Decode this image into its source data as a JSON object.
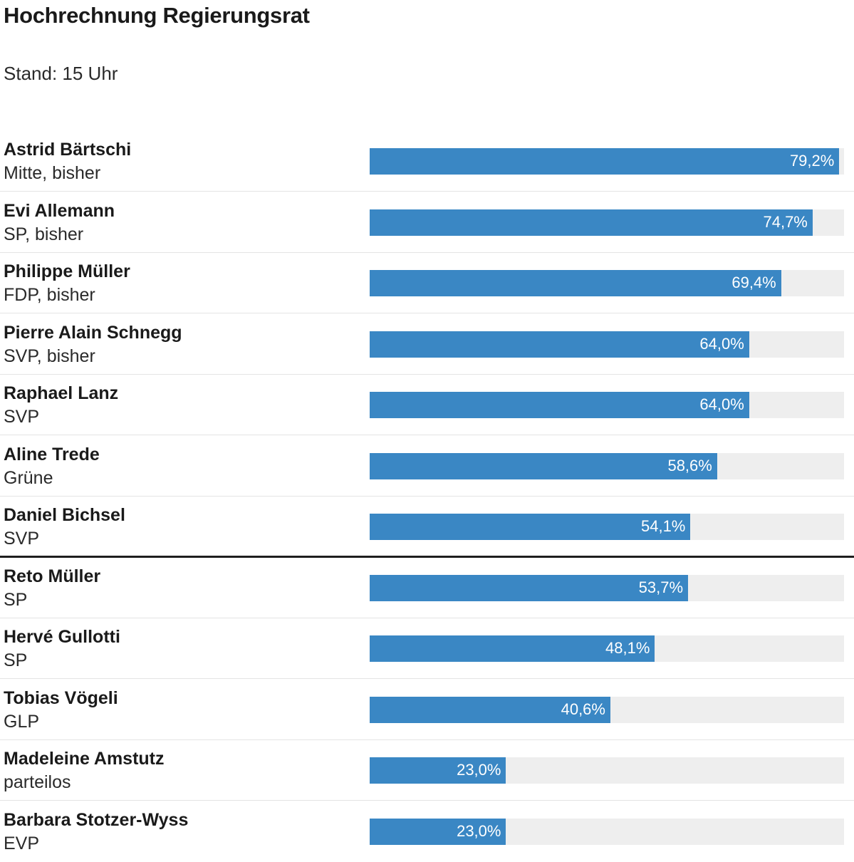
{
  "title": "Hochrechnung Regierungsrat",
  "subtitle": "Stand: 15 Uhr",
  "colors": {
    "bar": "#3a87c4",
    "track": "#eeeeee",
    "majority_line": "#1e1e1e",
    "value_text": "#ffffff"
  },
  "chart_data": {
    "type": "bar",
    "orientation": "horizontal",
    "xlim": [
      0,
      80
    ],
    "unit": "%",
    "majority_line_after_index": 6,
    "rows": [
      {
        "name": "Astrid Bärtschi",
        "party": "Mitte, bisher",
        "value": 79.2,
        "label": "79,2%"
      },
      {
        "name": "Evi Allemann",
        "party": "SP, bisher",
        "value": 74.7,
        "label": "74,7%"
      },
      {
        "name": "Philippe Müller",
        "party": "FDP, bisher",
        "value": 69.4,
        "label": "69,4%"
      },
      {
        "name": "Pierre Alain Schnegg",
        "party": "SVP, bisher",
        "value": 64.0,
        "label": "64,0%"
      },
      {
        "name": "Raphael Lanz",
        "party": "SVP",
        "value": 64.0,
        "label": "64,0%"
      },
      {
        "name": "Aline Trede",
        "party": "Grüne",
        "value": 58.6,
        "label": "58,6%"
      },
      {
        "name": "Daniel Bichsel",
        "party": "SVP",
        "value": 54.1,
        "label": "54,1%"
      },
      {
        "name": "Reto Müller",
        "party": "SP",
        "value": 53.7,
        "label": "53,7%"
      },
      {
        "name": "Hervé Gullotti",
        "party": "SP",
        "value": 48.1,
        "label": "48,1%"
      },
      {
        "name": "Tobias Vögeli",
        "party": "GLP",
        "value": 40.6,
        "label": "40,6%"
      },
      {
        "name": "Madeleine Amstutz",
        "party": "parteilos",
        "value": 23.0,
        "label": "23,0%"
      },
      {
        "name": "Barbara Stotzer-Wyss",
        "party": "EVP",
        "value": 23.0,
        "label": "23,0%"
      }
    ]
  }
}
